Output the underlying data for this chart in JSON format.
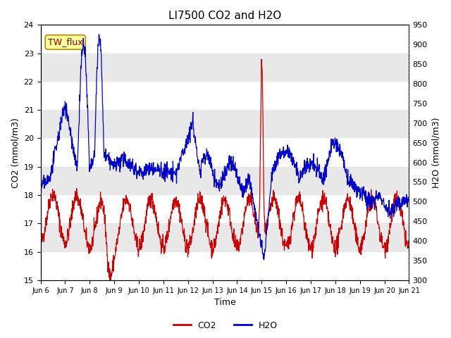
{
  "title": "LI7500 CO2 and H2O",
  "xlabel": "Time",
  "ylabel_left": "CO2 (mmol/m3)",
  "ylabel_right": "H2O (mmol/m3)",
  "ylim_left": [
    15.0,
    24.0
  ],
  "ylim_right": [
    300,
    950
  ],
  "xtick_labels": [
    "Jun 6",
    "Jun 7",
    "Jun 8",
    "Jun 9",
    "Jun 10",
    "Jun 11",
    "Jun 12",
    "Jun 13",
    "Jun 14",
    "Jun 15",
    "Jun 16",
    "Jun 17",
    "Jun 18",
    "Jun 19",
    "Jun 20",
    "Jun 21"
  ],
  "co2_color": "#cc0000",
  "h2o_color": "#0000cc",
  "legend_label_co2": "CO2",
  "legend_label_h2o": "H2O",
  "annotation_text": "TW_flux",
  "annotation_bg": "#ffff99",
  "annotation_border": "#bb8800",
  "background_color": "#ffffff",
  "stripe_color": "#e8e8e8",
  "title_fontsize": 11,
  "axis_fontsize": 9,
  "tick_fontsize": 8,
  "legend_fontsize": 9,
  "linewidth": 0.9
}
